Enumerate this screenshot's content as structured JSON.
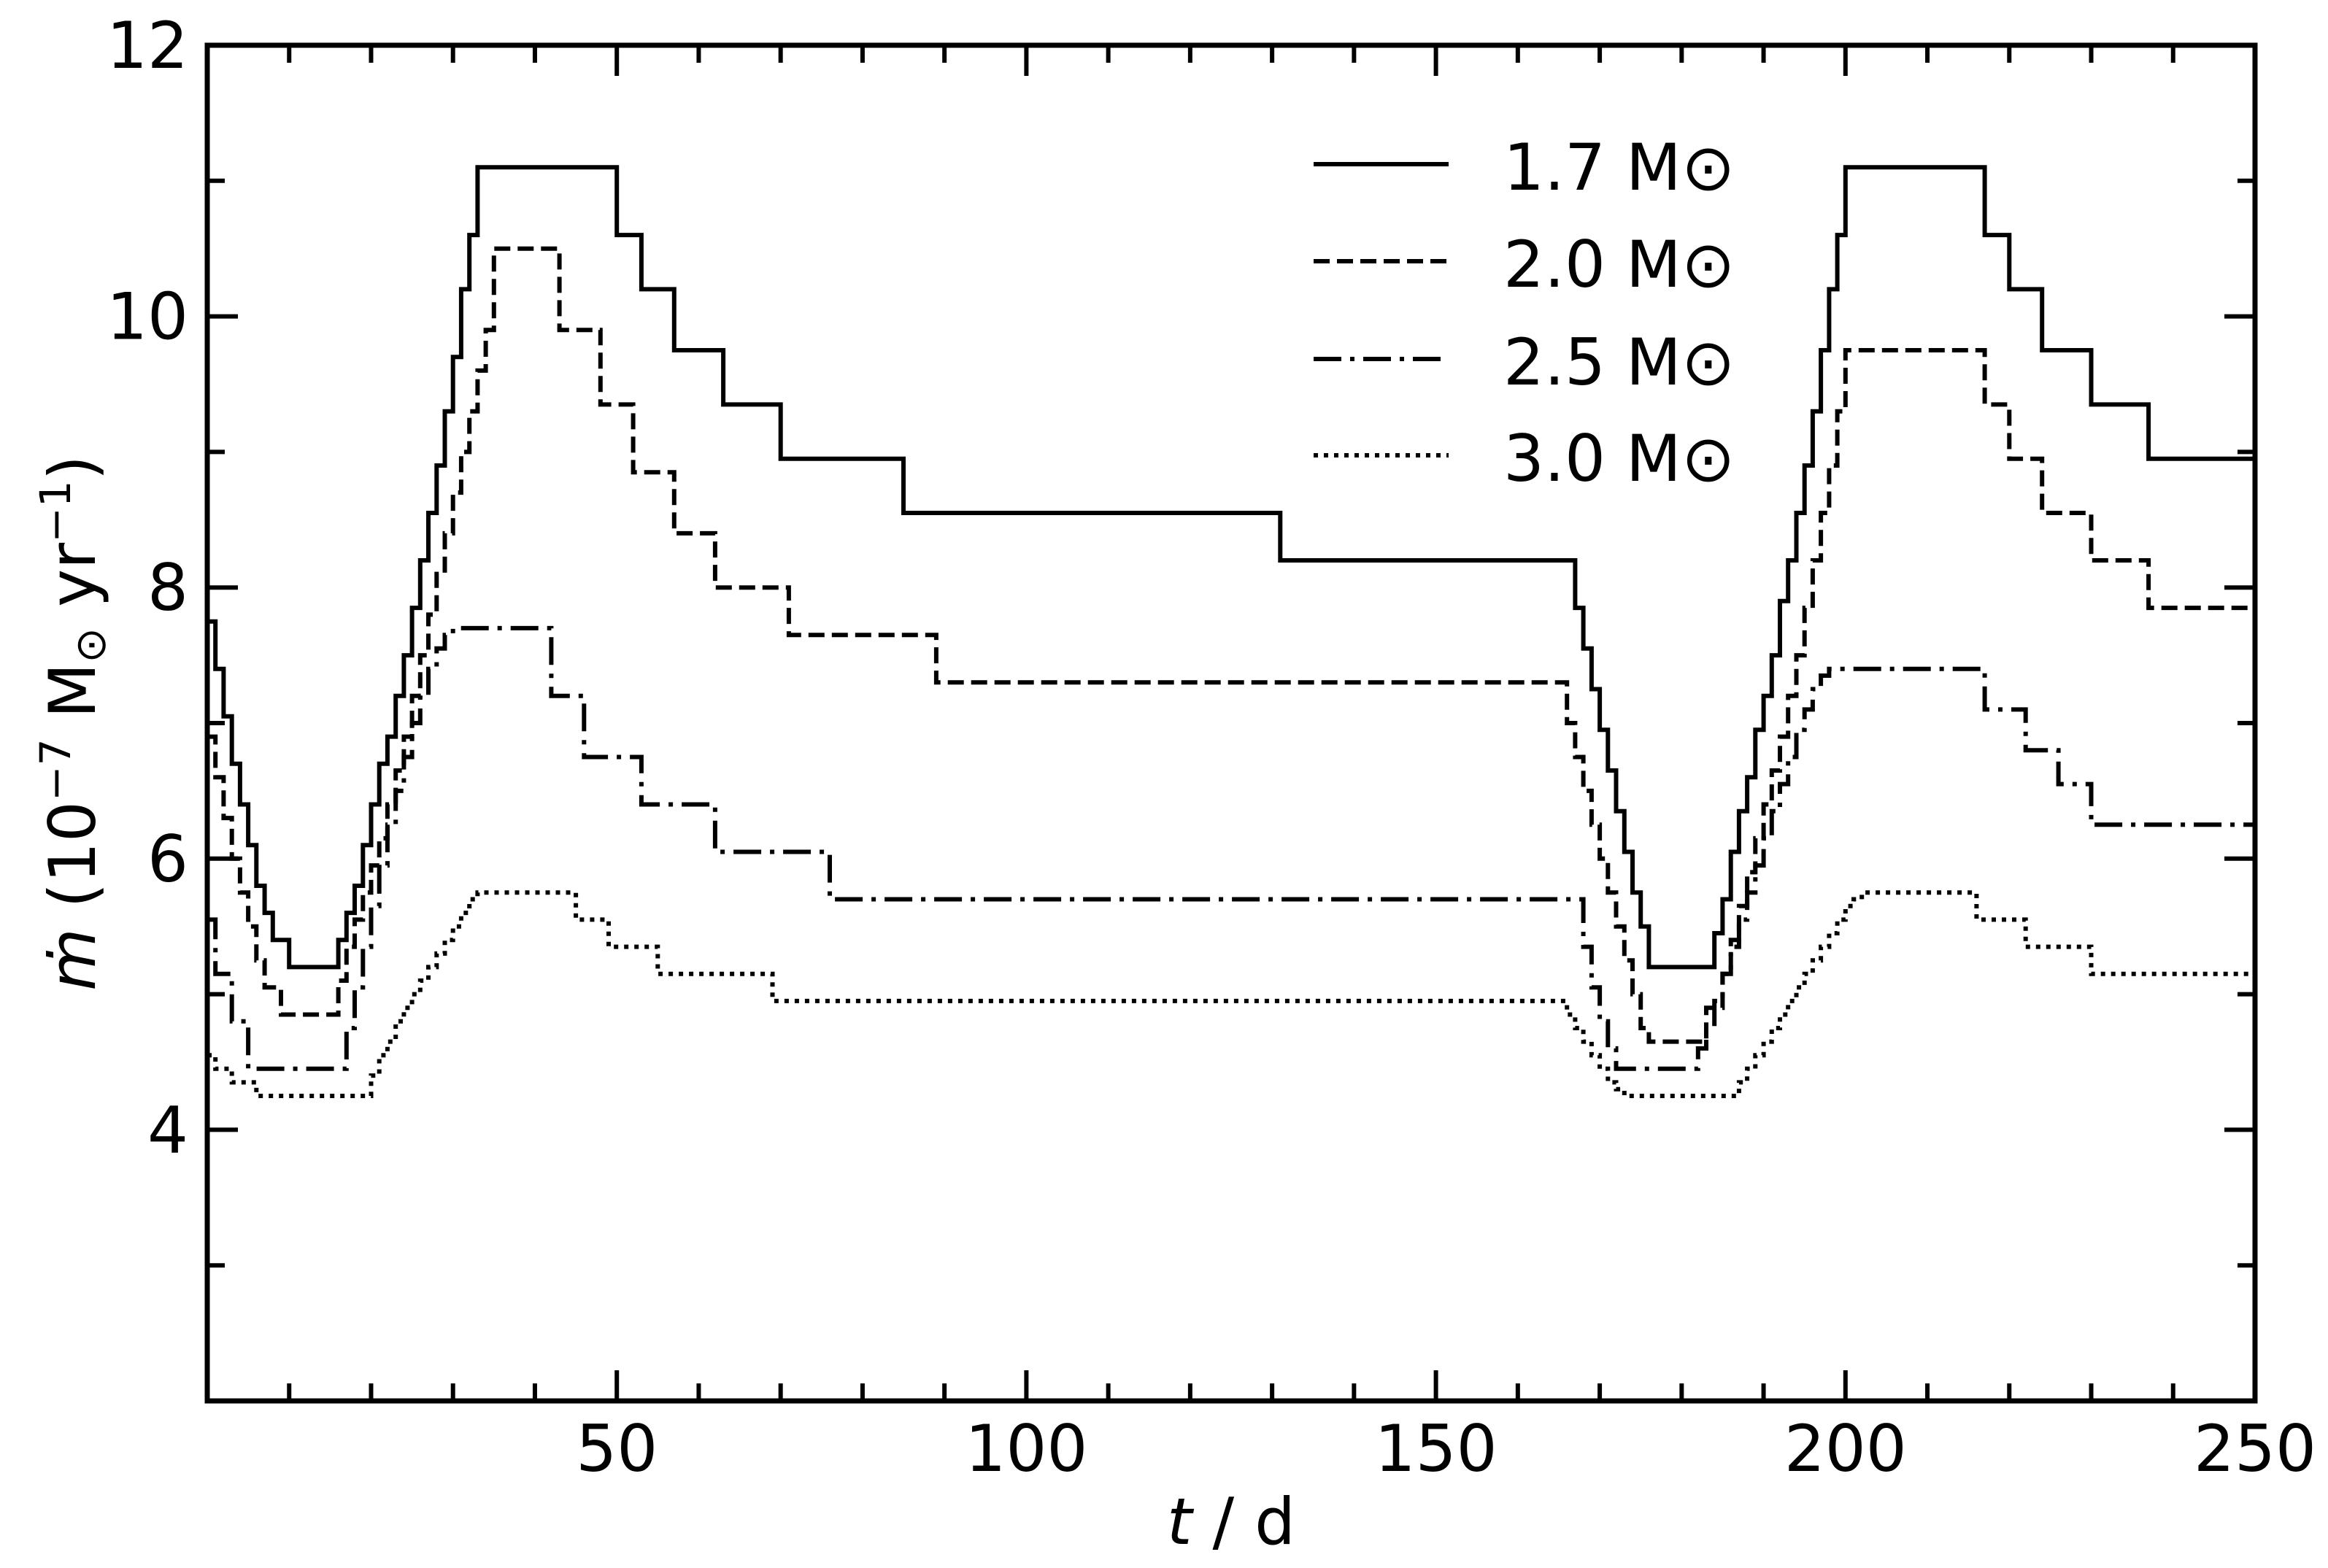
{
  "chart_data": {
    "type": "line",
    "step": true,
    "xlabel": {
      "italic": "t",
      "rest": " / d"
    },
    "ylabel": {
      "symbol": "ṁ",
      "prefix": " (10",
      "exp1": "−7",
      "unit": " M",
      "sun": "⊙",
      "yr": " yr",
      "exp2": "−1",
      "suffix": ")"
    },
    "xlim": [
      0,
      250
    ],
    "ylim": [
      2,
      12
    ],
    "x_ticks": [
      50,
      100,
      150,
      200,
      250
    ],
    "x_tick_labels": [
      "50",
      "100",
      "150",
      "200",
      "250"
    ],
    "x_minor_ticks": [
      10,
      20,
      30,
      40,
      60,
      70,
      80,
      90,
      110,
      120,
      130,
      140,
      160,
      170,
      180,
      190,
      210,
      220,
      230,
      240
    ],
    "y_ticks": [
      4,
      6,
      8,
      10,
      12
    ],
    "y_tick_labels": [
      "4",
      "6",
      "8",
      "10",
      "12"
    ],
    "y_minor_ticks": [
      3,
      5,
      7,
      9,
      11
    ],
    "grid": false,
    "legend_position": "top-center",
    "series": [
      {
        "name": "1.7 M⊙",
        "dash": "solid",
        "x": [
          0,
          1,
          2,
          3,
          4,
          5,
          6,
          7,
          8,
          10,
          12,
          16,
          17,
          18,
          19,
          20,
          21,
          22,
          23,
          24,
          25,
          26,
          27,
          28,
          29,
          30,
          31,
          32,
          33,
          34,
          35,
          36,
          37,
          38,
          50,
          53,
          57,
          63,
          70,
          85,
          131,
          167,
          168,
          169,
          170,
          171,
          172,
          173,
          174,
          175,
          176,
          177,
          178,
          184,
          185,
          186,
          187,
          188,
          189,
          190,
          191,
          192,
          193,
          194,
          195,
          196,
          197,
          198,
          199,
          200,
          201,
          202,
          203,
          204,
          205,
          206,
          217,
          220,
          224,
          230,
          237,
          250
        ],
        "y": [
          7.75,
          7.4,
          7.05,
          6.7,
          6.4,
          6.1,
          5.8,
          5.6,
          5.4,
          5.2,
          5.2,
          5.4,
          5.6,
          5.8,
          6.1,
          6.4,
          6.7,
          6.9,
          7.2,
          7.5,
          7.85,
          8.2,
          8.55,
          8.9,
          9.3,
          9.7,
          10.2,
          10.6,
          11.1,
          11.1,
          11.1,
          11.1,
          11.1,
          11.1,
          10.6,
          10.2,
          9.75,
          9.35,
          8.95,
          8.55,
          8.2,
          7.85,
          7.55,
          7.25,
          6.95,
          6.65,
          6.35,
          6.05,
          5.75,
          5.5,
          5.2,
          5.2,
          5.2,
          5.45,
          5.7,
          6.05,
          6.35,
          6.6,
          6.95,
          7.2,
          7.5,
          7.9,
          8.2,
          8.55,
          8.9,
          9.3,
          9.75,
          10.2,
          10.6,
          11.1,
          11.1,
          11.1,
          11.1,
          11.1,
          11.1,
          11.1,
          10.6,
          10.2,
          9.75,
          9.35,
          8.95,
          8.55
        ]
      },
      {
        "name": "2.0 M⊙",
        "dash": "dashed",
        "x": [
          0,
          1,
          2,
          3,
          4,
          5,
          6,
          7,
          9,
          12,
          16,
          17,
          18,
          19,
          20,
          21,
          22,
          23,
          24,
          25,
          26,
          27,
          28,
          29,
          30,
          31,
          32,
          33,
          34,
          35,
          37,
          39,
          43,
          48,
          52,
          57,
          62,
          71,
          89,
          133,
          166,
          167,
          168,
          169,
          170,
          171,
          172,
          173,
          174,
          175,
          176,
          177,
          178,
          183,
          185,
          186,
          187,
          188,
          189,
          190,
          191,
          192,
          193,
          194,
          195,
          196,
          197,
          198,
          199,
          200,
          201,
          202,
          203,
          204,
          205,
          206,
          217,
          220,
          224,
          230,
          237,
          250
        ],
        "y": [
          6.9,
          6.6,
          6.3,
          6.0,
          5.75,
          5.5,
          5.25,
          5.05,
          4.85,
          4.85,
          5.1,
          5.35,
          5.55,
          5.75,
          5.95,
          6.15,
          6.4,
          6.65,
          6.9,
          7.2,
          7.5,
          7.8,
          8.1,
          8.4,
          8.7,
          9.0,
          9.3,
          9.6,
          9.9,
          10.5,
          10.5,
          10.5,
          9.9,
          9.35,
          8.85,
          8.4,
          8.0,
          7.65,
          7.3,
          7.3,
          7.0,
          6.75,
          6.5,
          6.25,
          6.0,
          5.75,
          5.5,
          5.25,
          5.0,
          4.75,
          4.65,
          4.65,
          4.65,
          4.9,
          5.15,
          5.4,
          5.65,
          5.9,
          6.15,
          6.4,
          6.65,
          6.9,
          7.2,
          7.5,
          7.85,
          8.2,
          8.55,
          8.9,
          9.3,
          9.75,
          9.75,
          9.75,
          9.75,
          9.75,
          9.75,
          9.75,
          9.35,
          8.95,
          8.55,
          8.2,
          7.85,
          7.85
        ]
      },
      {
        "name": "2.5 M⊙",
        "dash": "dashdot",
        "x": [
          0,
          1,
          3,
          5,
          7,
          17,
          18,
          19,
          20,
          21,
          22,
          23,
          24,
          25,
          26,
          27,
          28,
          29,
          30,
          31,
          32,
          33,
          34,
          35,
          36,
          37,
          38,
          42,
          46,
          53,
          62,
          76,
          136,
          168,
          169,
          170,
          171,
          172,
          173,
          174,
          175,
          176,
          177,
          178,
          182,
          183,
          184,
          185,
          186,
          187,
          188,
          189,
          190,
          191,
          192,
          193,
          194,
          195,
          196,
          197,
          198,
          199,
          200,
          201,
          202,
          203,
          204,
          205,
          206,
          207,
          208,
          217,
          222,
          226,
          230,
          235,
          250
        ],
        "y": [
          5.55,
          5.15,
          4.8,
          4.45,
          4.45,
          4.75,
          5.05,
          5.35,
          5.65,
          5.95,
          6.25,
          6.5,
          6.75,
          7.0,
          7.2,
          7.4,
          7.55,
          7.65,
          7.7,
          7.7,
          7.7,
          7.7,
          7.7,
          7.7,
          7.7,
          7.7,
          7.7,
          7.2,
          6.75,
          6.4,
          6.05,
          5.7,
          5.7,
          5.35,
          5.05,
          4.8,
          4.6,
          4.45,
          4.45,
          4.45,
          4.45,
          4.45,
          4.45,
          4.45,
          4.6,
          4.75,
          4.95,
          5.15,
          5.35,
          5.55,
          5.75,
          5.95,
          6.15,
          6.35,
          6.55,
          6.75,
          6.95,
          7.1,
          7.25,
          7.35,
          7.4,
          7.4,
          7.4,
          7.4,
          7.4,
          7.4,
          7.4,
          7.4,
          7.4,
          7.4,
          7.4,
          7.1,
          6.8,
          6.55,
          6.25,
          6.25,
          6.1
        ]
      },
      {
        "name": "3.0 M⊙",
        "dash": "dotted",
        "x": [
          0,
          1,
          3,
          6,
          19,
          20,
          21,
          22,
          23,
          24,
          25,
          26,
          27,
          28,
          29,
          30,
          31,
          32,
          33,
          34,
          35,
          36,
          37,
          45,
          49,
          55,
          69,
          89,
          165,
          166,
          167,
          168,
          169,
          170,
          171,
          172,
          173,
          174,
          175,
          176,
          177,
          178,
          186,
          187,
          188,
          189,
          190,
          191,
          192,
          193,
          194,
          195,
          196,
          197,
          198,
          199,
          200,
          201,
          202,
          203,
          204,
          205,
          206,
          207,
          208,
          209,
          216,
          222,
          230,
          237,
          250
        ],
        "y": [
          4.55,
          4.45,
          4.35,
          4.25,
          4.25,
          4.4,
          4.55,
          4.65,
          4.8,
          4.9,
          5.0,
          5.1,
          5.2,
          5.3,
          5.4,
          5.5,
          5.6,
          5.7,
          5.75,
          5.75,
          5.75,
          5.75,
          5.75,
          5.55,
          5.35,
          5.15,
          4.95,
          4.95,
          4.95,
          4.85,
          4.75,
          4.65,
          4.55,
          4.45,
          4.35,
          4.3,
          4.25,
          4.25,
          4.25,
          4.25,
          4.25,
          4.25,
          4.25,
          4.35,
          4.45,
          4.55,
          4.65,
          4.75,
          4.85,
          4.95,
          5.05,
          5.15,
          5.25,
          5.35,
          5.45,
          5.55,
          5.65,
          5.7,
          5.75,
          5.75,
          5.75,
          5.75,
          5.75,
          5.75,
          5.75,
          5.75,
          5.55,
          5.35,
          5.15,
          5.15,
          5.1
        ]
      }
    ]
  }
}
